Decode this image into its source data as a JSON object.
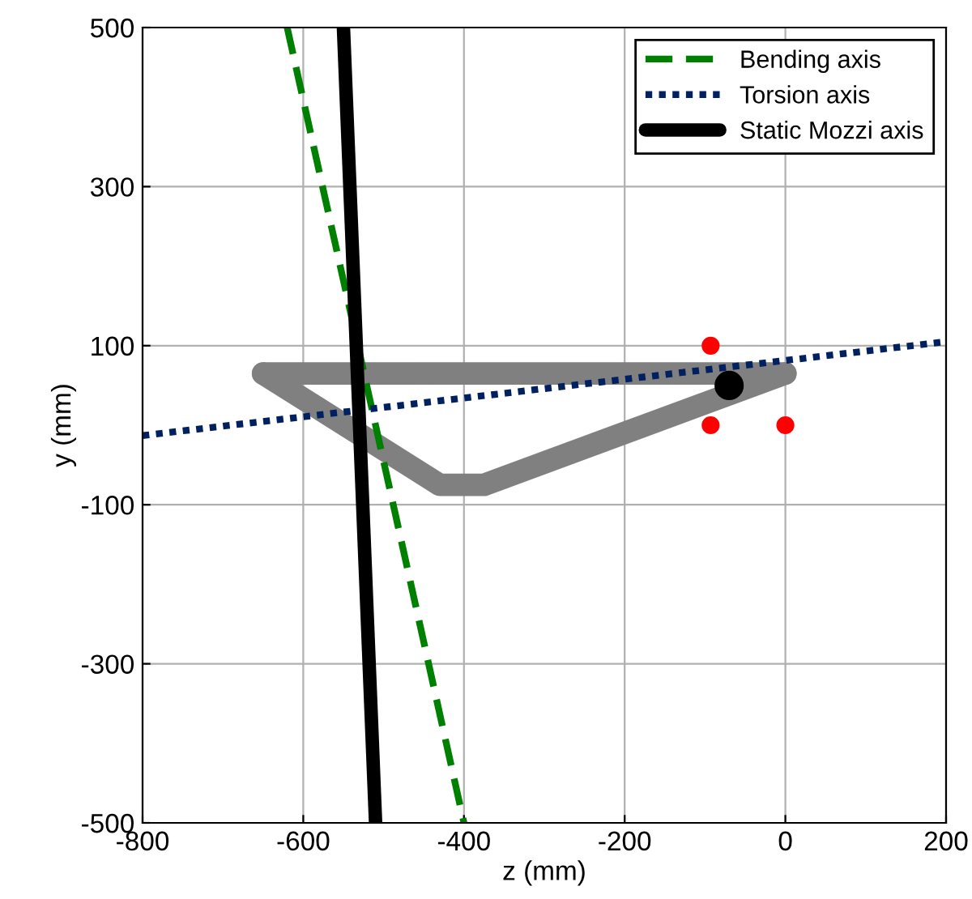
{
  "chart_data": {
    "type": "line",
    "xlabel": "z (mm)",
    "ylabel": "y (mm)",
    "xlim": [
      -800,
      200
    ],
    "ylim": [
      -500,
      500
    ],
    "xticks": [
      {
        "value": -800,
        "label": "-800"
      },
      {
        "value": -600,
        "label": "-600"
      },
      {
        "value": -400,
        "label": "-400"
      },
      {
        "value": -200,
        "label": "-200"
      },
      0,
      200
    ],
    "yticks": [
      {
        "value": -500,
        "label": "-500"
      },
      {
        "value": -300,
        "label": "-300"
      },
      {
        "value": -100,
        "label": "-100"
      },
      100,
      300,
      500
    ],
    "grid": true,
    "legend": "top right",
    "series": [
      {
        "name": "Bending axis",
        "color": "#008000",
        "line_style": "dashed",
        "x": [
          -620,
          -400
        ],
        "values": [
          500,
          -500
        ]
      },
      {
        "name": "Torsion axis",
        "color": "#002060",
        "line_style": "dotted",
        "x": [
          -800,
          200
        ],
        "values": [
          -13,
          105
        ]
      },
      {
        "name": "Static Mozzi axis",
        "color": "#000000",
        "line_style": "solid",
        "x": [
          -550,
          -510
        ],
        "values": [
          500,
          -500
        ]
      },
      {
        "color": "#808080",
        "line_style": "solid",
        "x": [
          -650,
          0
        ],
        "values": [
          65,
          65
        ]
      },
      {
        "color": "#808080",
        "line_style": "solid",
        "x": [
          -650,
          -430,
          -375,
          0
        ],
        "values": [
          65,
          -75,
          -75,
          65
        ]
      },
      {
        "type": "scatter",
        "color": "#ff0000",
        "marker": "circle",
        "x": [
          -93,
          -93,
          0
        ],
        "values": [
          100,
          0,
          0
        ]
      },
      {
        "type": "scatter",
        "color": "#000000",
        "marker": "circle",
        "x": [
          -70
        ],
        "values": [
          50
        ]
      }
    ]
  }
}
